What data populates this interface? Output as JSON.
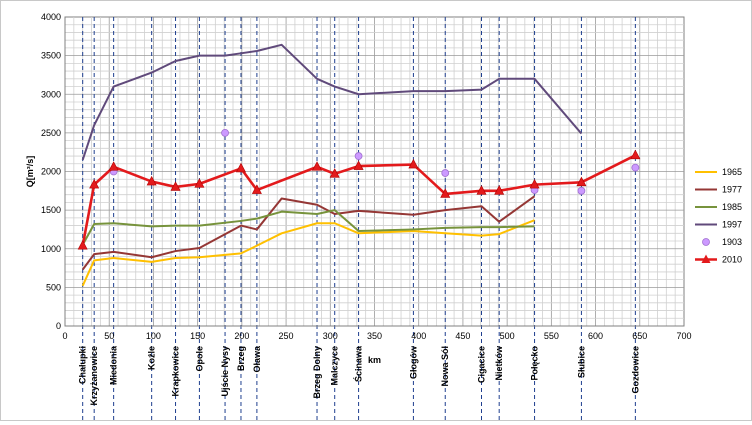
{
  "chart_data": {
    "type": "line",
    "ylabel": "Q[m³/s]",
    "xlabel": "km",
    "xlim": [
      0,
      700
    ],
    "ylim": [
      0,
      4000
    ],
    "x_ticks": [
      0,
      50,
      100,
      150,
      200,
      250,
      300,
      350,
      400,
      450,
      500,
      550,
      600,
      650,
      700
    ],
    "y_ticks": [
      0,
      500,
      1000,
      1500,
      2000,
      2500,
      3000,
      3500,
      4000
    ],
    "grid": true,
    "legend_position": "right",
    "stations": [
      {
        "name": "Chałupki",
        "km": 20
      },
      {
        "name": "Krzyżanowice",
        "km": 33
      },
      {
        "name": "Miedonia",
        "km": 55
      },
      {
        "name": "Koźle",
        "km": 98
      },
      {
        "name": "Krapkowice",
        "km": 125
      },
      {
        "name": "Opole",
        "km": 152
      },
      {
        "name": "Ujście Nysy",
        "km": 181
      },
      {
        "name": "Brzeg",
        "km": 199
      },
      {
        "name": "Oława",
        "km": 217
      },
      {
        "name": "Brzeg Dolny",
        "km": 285
      },
      {
        "name": "Malczyce",
        "km": 305
      },
      {
        "name": "Ścinawa",
        "km": 332
      },
      {
        "name": "Głogów",
        "km": 394
      },
      {
        "name": "Nowa Sól",
        "km": 430
      },
      {
        "name": "Cigacice",
        "km": 471
      },
      {
        "name": "Nietków",
        "km": 491
      },
      {
        "name": "Połęcko",
        "km": 531
      },
      {
        "name": "Słubice",
        "km": 584
      },
      {
        "name": "Gozdowice",
        "km": 645
      }
    ],
    "series": [
      {
        "name": "1965",
        "color": "#ffc000",
        "marker": "none",
        "x": [
          20,
          33,
          55,
          98,
          125,
          152,
          199,
          217,
          245,
          285,
          305,
          332,
          394,
          430,
          471,
          491,
          531
        ],
        "y": [
          520,
          850,
          880,
          830,
          880,
          890,
          940,
          1040,
          1200,
          1330,
          1330,
          1200,
          1230,
          1200,
          1170,
          1190,
          1370
        ]
      },
      {
        "name": "1977",
        "color": "#953735",
        "marker": "none",
        "x": [
          20,
          33,
          55,
          98,
          125,
          152,
          199,
          217,
          245,
          285,
          305,
          332,
          394,
          430,
          471,
          491,
          531
        ],
        "y": [
          730,
          930,
          960,
          890,
          970,
          1010,
          1300,
          1250,
          1650,
          1570,
          1450,
          1490,
          1440,
          1500,
          1550,
          1350,
          1680
        ]
      },
      {
        "name": "1985",
        "color": "#77933c",
        "marker": "none",
        "x": [
          20,
          33,
          55,
          98,
          125,
          152,
          199,
          217,
          245,
          285,
          305,
          332,
          394,
          430,
          471,
          491,
          531
        ],
        "y": [
          1050,
          1320,
          1330,
          1290,
          1300,
          1300,
          1360,
          1390,
          1480,
          1450,
          1500,
          1230,
          1250,
          1270,
          1280,
          1280,
          1290
        ]
      },
      {
        "name": "1997",
        "color": "#604a7b",
        "marker": "none",
        "x": [
          20,
          33,
          55,
          98,
          125,
          152,
          181,
          199,
          217,
          245,
          285,
          305,
          332,
          394,
          430,
          471,
          491,
          531,
          584
        ],
        "y": [
          2150,
          2600,
          3100,
          3280,
          3430,
          3500,
          3500,
          3530,
          3560,
          3640,
          3200,
          3100,
          3000,
          3040,
          3040,
          3060,
          3200,
          3200,
          2490
        ]
      },
      {
        "name": "1903",
        "color": "#cc99ff",
        "marker": "circle-only",
        "x": [
          55,
          181,
          332,
          430,
          531,
          584,
          645
        ],
        "y": [
          2000,
          2500,
          2200,
          1980,
          1760,
          1750,
          2050
        ]
      },
      {
        "name": "2010",
        "color": "#e31a1c",
        "marker": "triangle",
        "x": [
          20,
          33,
          55,
          98,
          125,
          152,
          199,
          217,
          285,
          305,
          332,
          394,
          430,
          471,
          491,
          531,
          584,
          645
        ],
        "y": [
          1040,
          1830,
          2060,
          1870,
          1800,
          1840,
          2040,
          1760,
          2060,
          1970,
          2070,
          2090,
          1710,
          1750,
          1750,
          1830,
          1860,
          2210
        ]
      }
    ]
  }
}
